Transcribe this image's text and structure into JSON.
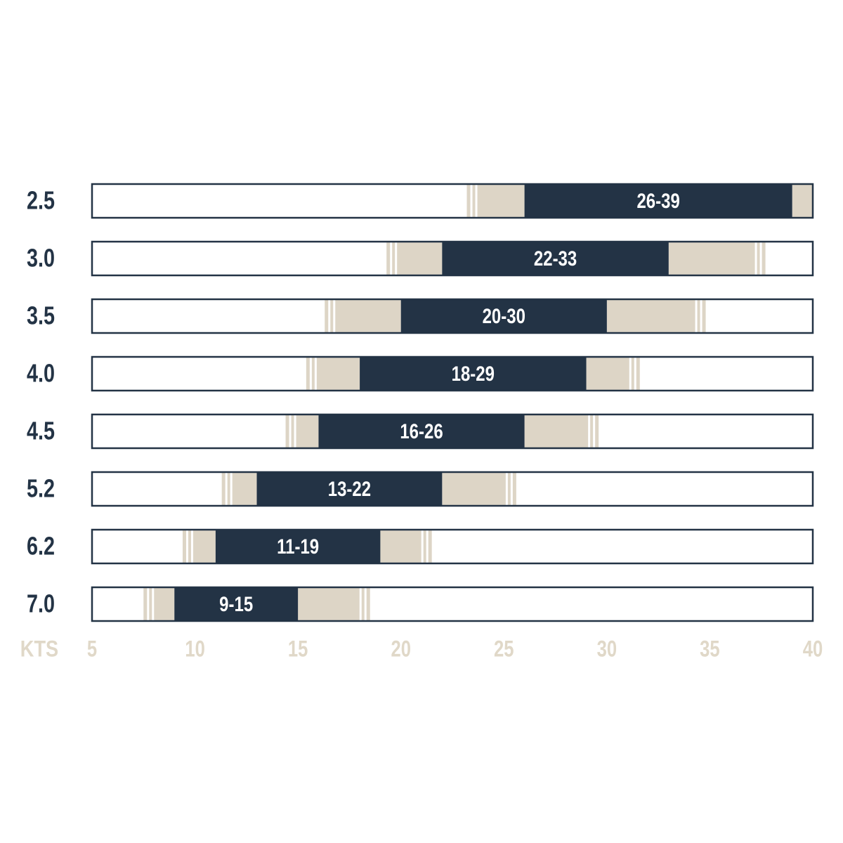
{
  "chart_data": {
    "type": "range",
    "categories": [
      "2.5",
      "3.0",
      "3.5",
      "4.0",
      "4.5",
      "5.2",
      "6.2",
      "7.0"
    ],
    "low": [
      26,
      22,
      20,
      18,
      16,
      13,
      11,
      9
    ],
    "high": [
      39,
      33,
      30,
      29,
      26,
      22,
      19,
      15
    ],
    "value_labels": [
      "26-39",
      "22-33",
      "20-30",
      "18-29",
      "16-26",
      "13-22",
      "11-19",
      "9-15"
    ],
    "extended_low": [
      23.2,
      19.3,
      16.3,
      15.4,
      14.4,
      11.3,
      9.4,
      7.5
    ],
    "extended_high": [
      40,
      37.7,
      34.8,
      31.6,
      29.6,
      25.6,
      21.5,
      18.5
    ],
    "color": "#233345",
    "extended_color": "#ddd5c6",
    "x_label": "KTS",
    "xlim": [
      5,
      40
    ],
    "xticks": [
      5,
      10,
      15,
      20,
      25,
      30,
      35,
      40
    ]
  }
}
